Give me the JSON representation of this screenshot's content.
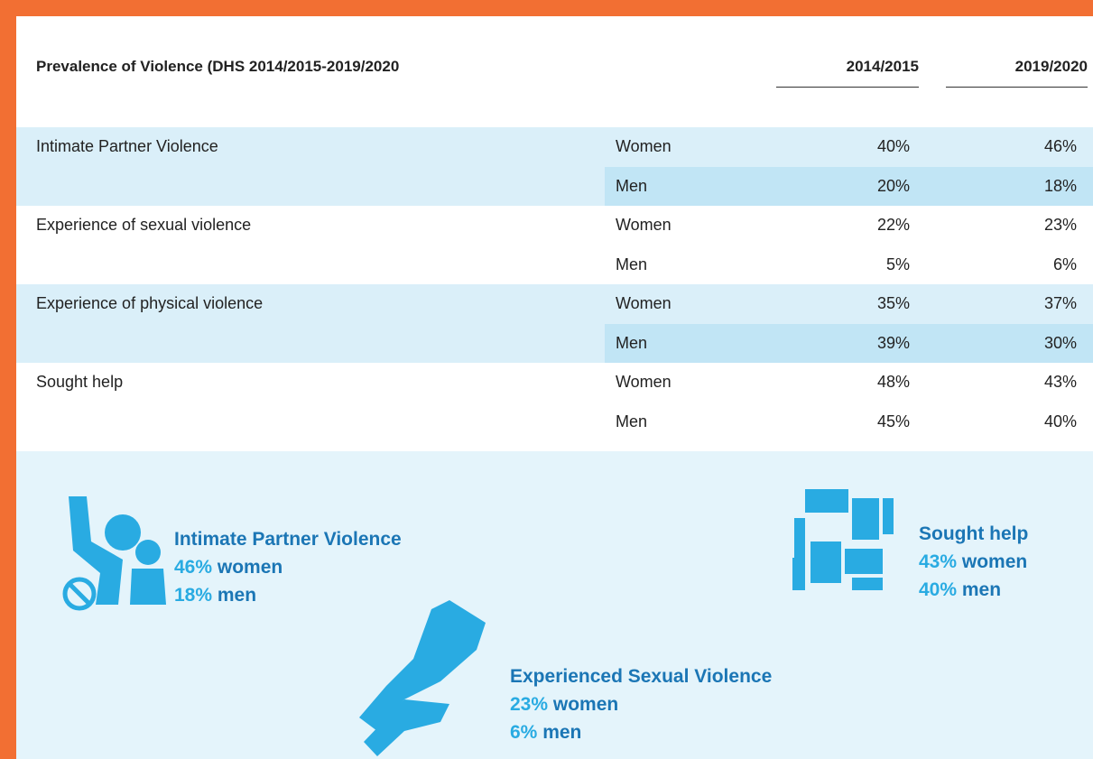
{
  "table": {
    "title": "Prevalence of Violence (DHS 2014/2015-2019/2020",
    "columns": [
      "2014/2015",
      "2019/2020"
    ],
    "groups": [
      {
        "label": "Intimate Partner Violence",
        "shaded": true,
        "rows": [
          {
            "sex": "Women",
            "values": [
              "40%",
              "46%"
            ]
          },
          {
            "sex": "Men",
            "values": [
              "20%",
              "18%"
            ]
          }
        ]
      },
      {
        "label": "Experience of sexual violence",
        "shaded": false,
        "rows": [
          {
            "sex": "Women",
            "values": [
              "22%",
              "23%"
            ]
          },
          {
            "sex": "Men",
            "values": [
              "5%",
              "6%"
            ]
          }
        ]
      },
      {
        "label": "Experience of physical violence",
        "shaded": true,
        "rows": [
          {
            "sex": "Women",
            "values": [
              "35%",
              "37%"
            ]
          },
          {
            "sex": "Men",
            "values": [
              "39%",
              "30%"
            ]
          }
        ]
      },
      {
        "label": "Sought help",
        "shaded": false,
        "rows": [
          {
            "sex": "Women",
            "values": [
              "48%",
              "43%"
            ]
          },
          {
            "sex": "Men",
            "values": [
              "45%",
              "40%"
            ]
          }
        ]
      }
    ]
  },
  "highlights": [
    {
      "title": "Intimate Partner Violence",
      "lines": [
        {
          "value": "46%",
          "label": "women"
        },
        {
          "value": "18%",
          "label": "men"
        }
      ]
    },
    {
      "title": "Sought help",
      "lines": [
        {
          "value": "43%",
          "label": "women"
        },
        {
          "value": "40%",
          "label": "men"
        }
      ]
    },
    {
      "title": "Experienced Sexual Violence",
      "lines": [
        {
          "value": "23%",
          "label": "women"
        },
        {
          "value": "6%",
          "label": "men"
        }
      ]
    }
  ]
}
